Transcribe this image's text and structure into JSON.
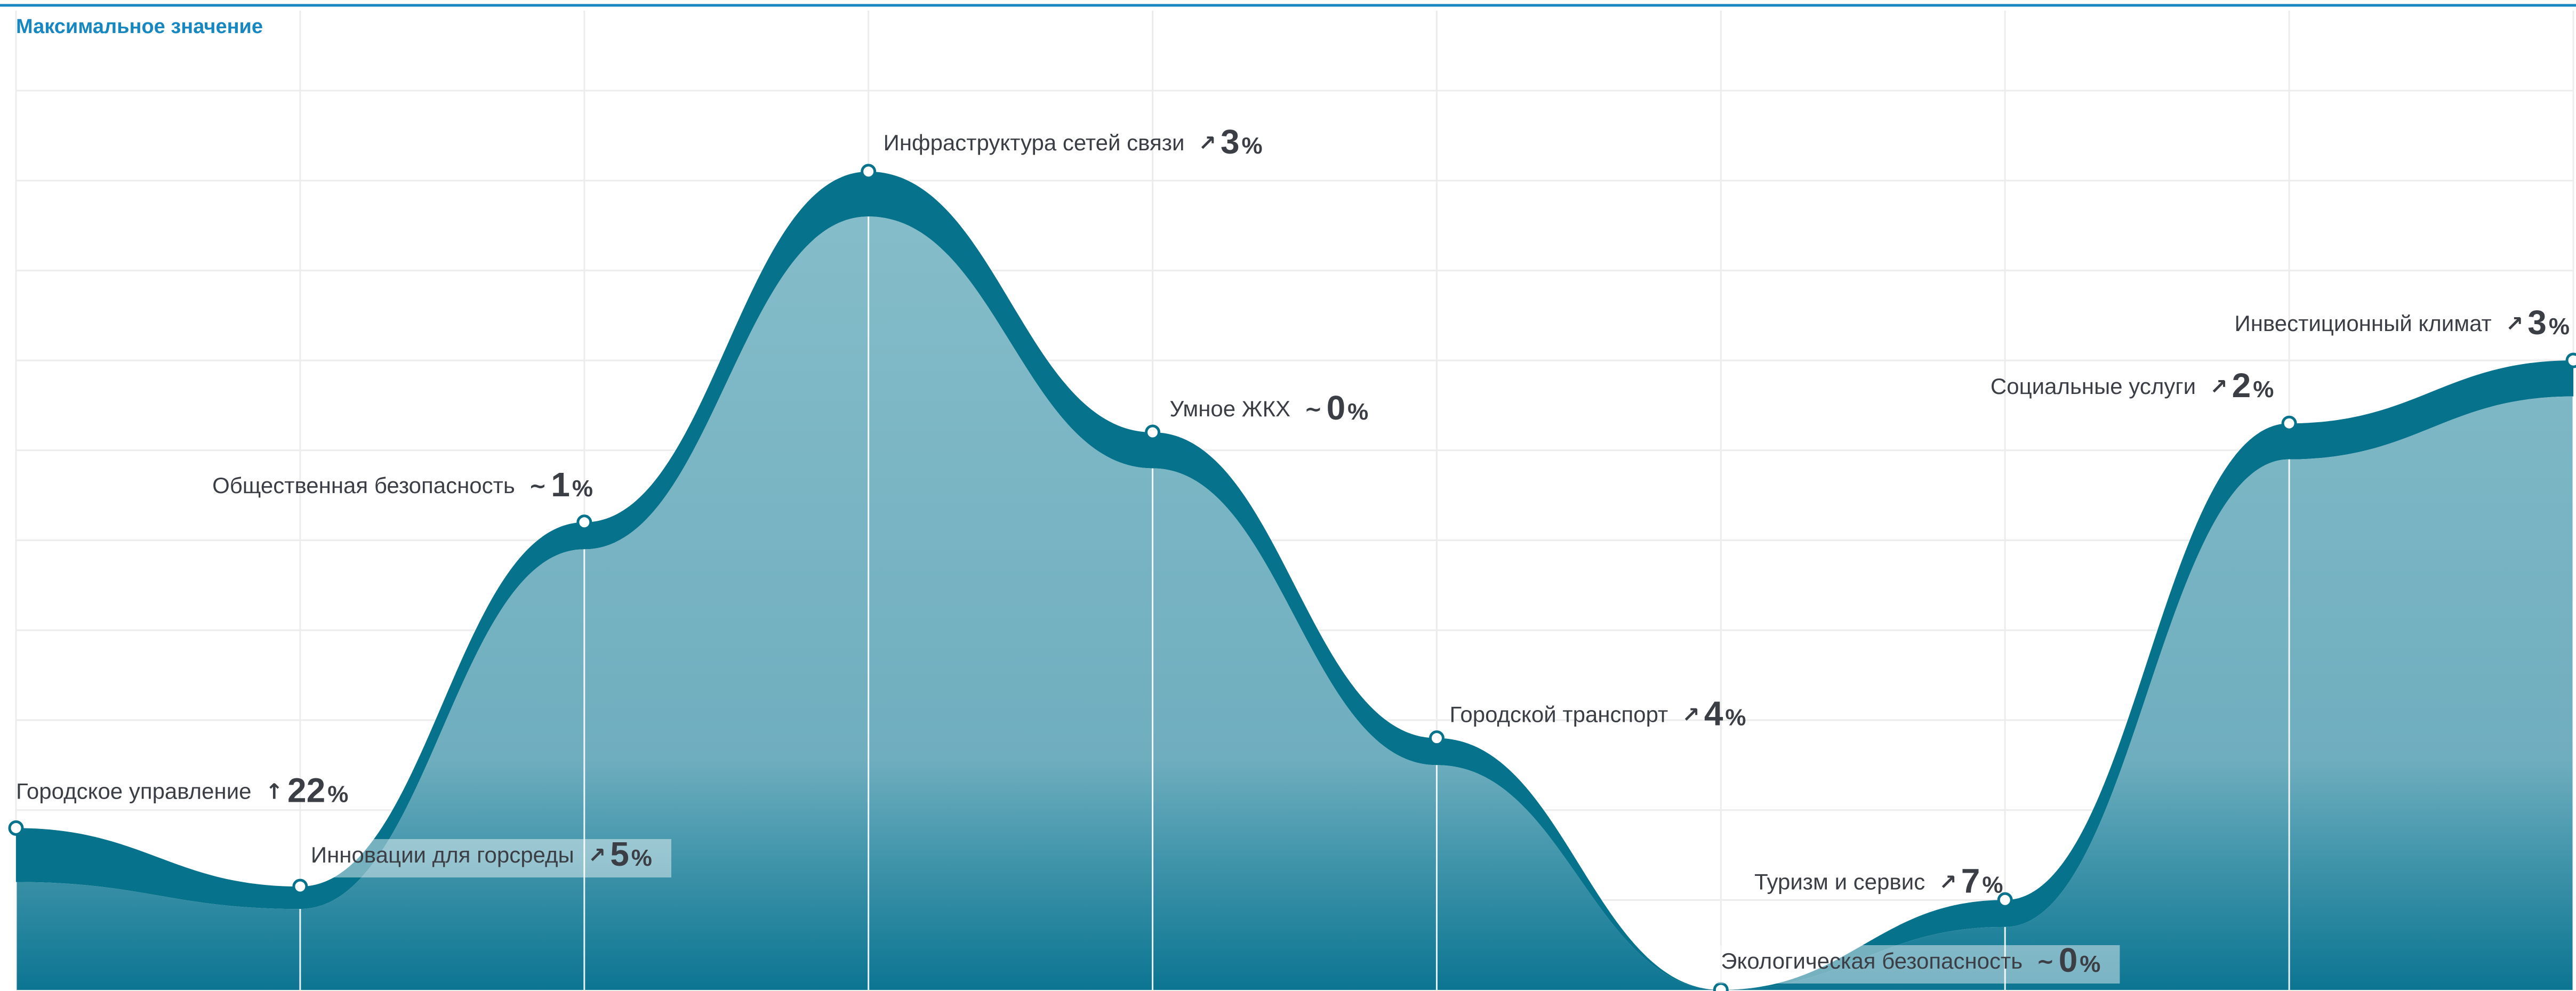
{
  "chart_data": {
    "type": "area",
    "title": "Максимальное значение",
    "categories": [
      "Городское управление",
      "Инновации для горсреды",
      "Общественная безопасность",
      "Инфраструктура сетей связи",
      "Умное ЖКХ",
      "Городской транспорт",
      "Экологическая безопасность",
      "Туризм и сервис",
      "Социальные услуги",
      "Инвестиционный климат"
    ],
    "series": [
      {
        "values": [
          18,
          11.5,
          52,
          91,
          62,
          28,
          0,
          10,
          63,
          70
        ]
      },
      {
        "values": [
          12,
          9,
          49,
          86,
          58,
          25,
          0,
          7,
          59,
          66
        ]
      }
    ],
    "changes": [
      {
        "trend": "↑",
        "value": "22",
        "unit": "%"
      },
      {
        "trend": "↗",
        "value": "5",
        "unit": "%"
      },
      {
        "trend": "~",
        "value": "1",
        "unit": "%"
      },
      {
        "trend": "↗",
        "value": "3",
        "unit": "%"
      },
      {
        "trend": "~",
        "value": "0",
        "unit": "%"
      },
      {
        "trend": "↗",
        "value": "4",
        "unit": "%"
      },
      {
        "trend": "~",
        "value": "0",
        "unit": "%"
      },
      {
        "trend": "↗",
        "value": "7",
        "unit": "%"
      },
      {
        "trend": "↗",
        "value": "2",
        "unit": "%"
      },
      {
        "trend": "↗",
        "value": "3",
        "unit": "%"
      }
    ],
    "ylim": [
      0,
      100
    ],
    "grid": true,
    "colors": {
      "title": "#1687c1",
      "band": "#06728c",
      "area_light": "#85bcc9",
      "area_dark": "#0c7592",
      "text": "#3b3f45",
      "label_box": "#ffffff"
    }
  }
}
